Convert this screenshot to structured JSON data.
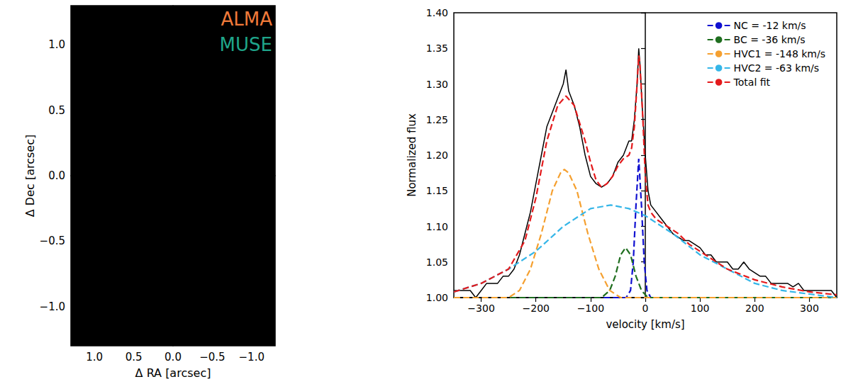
{
  "chart_data": [
    {
      "type": "image",
      "xlabel": "Δ RA [arcsec]",
      "ylabel": "Δ Dec [arcsec]",
      "xlim": [
        1.3,
        -1.3
      ],
      "ylim": [
        -1.3,
        1.3
      ],
      "xticks": [
        {
          "value": 1,
          "label": "1.0"
        },
        0.5,
        {
          "value": 0,
          "label": "0.0"
        },
        {
          "value": -0.5,
          "label": "−0.5"
        },
        {
          "value": -1,
          "label": "−1.0"
        }
      ],
      "yticks": [
        {
          "value": -1,
          "label": "−1.0"
        },
        {
          "value": -0.5,
          "label": "−0.5"
        },
        {
          "value": 0,
          "label": "0.0"
        },
        0.5,
        {
          "value": 1,
          "label": "1.0"
        }
      ],
      "annotations": [
        {
          "text": "ALMA",
          "color": "#f07a3a"
        },
        {
          "text": "MUSE",
          "color": "#1fa58a"
        }
      ]
    },
    {
      "type": "line",
      "xlabel": "velocity [km/s]",
      "ylabel": "Normalized flux",
      "xlim": [
        -350,
        350
      ],
      "ylim": [
        1.0,
        1.4
      ],
      "xticks": [
        {
          "value": -300,
          "label": "−300"
        },
        {
          "value": -200,
          "label": "−200"
        },
        {
          "value": -100,
          "label": "−100"
        },
        0,
        100,
        200,
        300
      ],
      "yticks": [
        {
          "value": 1.0,
          "label": "1.00"
        },
        1.05,
        {
          "value": 1.1,
          "label": "1.10"
        },
        1.15,
        {
          "value": 1.2,
          "label": "1.20"
        },
        1.25,
        {
          "value": 1.3,
          "label": "1.30"
        },
        1.35,
        {
          "value": 1.4,
          "label": "1.40"
        }
      ],
      "legend": "upper right",
      "series": [
        {
          "color": "#000000",
          "line_style": "solid",
          "x": [
            -350,
            -340,
            -330,
            -320,
            -310,
            -300,
            -290,
            -280,
            -270,
            -260,
            -250,
            -240,
            -230,
            -220,
            -210,
            -200,
            -190,
            -180,
            -170,
            -160,
            -150,
            -145,
            -140,
            -130,
            -120,
            -110,
            -100,
            -90,
            -80,
            -70,
            -60,
            -50,
            -40,
            -30,
            -25,
            -20,
            -15,
            -12,
            -10,
            -5,
            0,
            5,
            10,
            20,
            30,
            40,
            50,
            60,
            70,
            80,
            90,
            100,
            110,
            120,
            130,
            140,
            150,
            160,
            170,
            180,
            190,
            200,
            210,
            220,
            230,
            240,
            250,
            260,
            270,
            280,
            290,
            300,
            310,
            320,
            330,
            340,
            350
          ],
          "values": [
            1.01,
            1.01,
            1.01,
            1.01,
            1.0,
            1.01,
            1.02,
            1.02,
            1.02,
            1.03,
            1.03,
            1.04,
            1.06,
            1.09,
            1.12,
            1.16,
            1.2,
            1.24,
            1.26,
            1.28,
            1.3,
            1.32,
            1.29,
            1.27,
            1.24,
            1.2,
            1.17,
            1.16,
            1.155,
            1.16,
            1.17,
            1.19,
            1.2,
            1.22,
            1.22,
            1.25,
            1.3,
            1.35,
            1.33,
            1.26,
            1.2,
            1.15,
            1.13,
            1.12,
            1.11,
            1.1,
            1.09,
            1.085,
            1.08,
            1.08,
            1.075,
            1.07,
            1.06,
            1.06,
            1.05,
            1.05,
            1.05,
            1.04,
            1.04,
            1.05,
            1.04,
            1.035,
            1.03,
            1.03,
            1.02,
            1.02,
            1.02,
            1.02,
            1.015,
            1.02,
            1.01,
            1.01,
            1.01,
            1.01,
            1.01,
            1.01,
            1.0
          ]
        },
        {
          "name": "NC = -12 km/s",
          "color": "#1010d0",
          "line_style": "dashed",
          "x": [
            -350,
            -35,
            -27,
            -22,
            -17,
            -12,
            -7,
            -2,
            3,
            10,
            350
          ],
          "values": [
            1.0,
            1.0,
            1.01,
            1.05,
            1.13,
            1.195,
            1.13,
            1.05,
            1.01,
            1.0,
            1.0
          ]
        },
        {
          "name": "BC = -36 km/s",
          "color": "#1f6e1f",
          "line_style": "dashed",
          "x": [
            -350,
            -80,
            -65,
            -55,
            -45,
            -36,
            -27,
            -17,
            -7,
            5,
            350
          ],
          "values": [
            1.0,
            1.0,
            1.01,
            1.03,
            1.06,
            1.07,
            1.06,
            1.03,
            1.01,
            1.0,
            1.0
          ]
        },
        {
          "name": "HVC1 = -148 km/s",
          "color": "#f5a030",
          "line_style": "dashed",
          "x": [
            -350,
            -250,
            -230,
            -210,
            -190,
            -170,
            -155,
            -148,
            -140,
            -125,
            -105,
            -85,
            -65,
            -45,
            350
          ],
          "values": [
            1.0,
            1.0,
            1.01,
            1.04,
            1.09,
            1.15,
            1.175,
            1.18,
            1.175,
            1.15,
            1.09,
            1.04,
            1.01,
            1.0,
            1.0
          ]
        },
        {
          "name": "HVC2 = -63 km/s",
          "color": "#35b6e8",
          "line_style": "dashed",
          "x": [
            -350,
            -300,
            -250,
            -200,
            -150,
            -100,
            -63,
            -30,
            0,
            50,
            100,
            150,
            200,
            250,
            300,
            350
          ],
          "values": [
            1.008,
            1.02,
            1.04,
            1.065,
            1.1,
            1.125,
            1.13,
            1.125,
            1.115,
            1.09,
            1.06,
            1.04,
            1.02,
            1.01,
            1.005,
            1.0
          ]
        },
        {
          "name": "Total fit",
          "color": "#e41a1c",
          "line_style": "dashed",
          "x": [
            -350,
            -300,
            -250,
            -220,
            -200,
            -180,
            -160,
            -145,
            -130,
            -110,
            -100,
            -90,
            -80,
            -70,
            -60,
            -50,
            -40,
            -30,
            -25,
            -20,
            -15,
            -12,
            -10,
            -5,
            0,
            5,
            10,
            20,
            40,
            60,
            80,
            100,
            120,
            150,
            200,
            250,
            300,
            350
          ],
          "values": [
            1.008,
            1.02,
            1.04,
            1.08,
            1.14,
            1.22,
            1.27,
            1.283,
            1.27,
            1.22,
            1.19,
            1.165,
            1.155,
            1.16,
            1.17,
            1.185,
            1.195,
            1.2,
            1.21,
            1.24,
            1.3,
            1.34,
            1.33,
            1.26,
            1.17,
            1.13,
            1.12,
            1.11,
            1.1,
            1.09,
            1.075,
            1.065,
            1.055,
            1.04,
            1.025,
            1.015,
            1.008,
            1.004
          ]
        }
      ]
    }
  ]
}
